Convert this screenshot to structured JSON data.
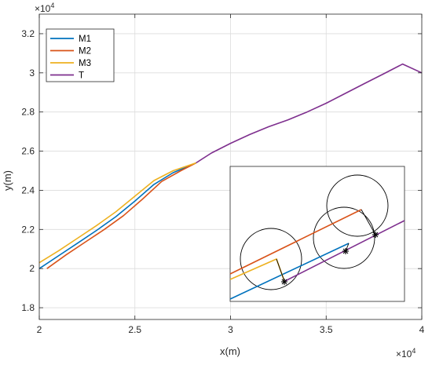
{
  "chart_data": {
    "type": "line",
    "xlabel": "x(m)",
    "ylabel": "y(m)",
    "x_exponent_label": "×10",
    "x_exponent_power": "4",
    "y_exponent_label": "×10",
    "y_exponent_power": "4",
    "xlim": [
      20000,
      40000
    ],
    "ylim": [
      17400,
      33000
    ],
    "x_ticks": [
      20000,
      25000,
      30000,
      35000,
      40000
    ],
    "x_tick_labels": [
      "2",
      "2.5",
      "3",
      "3.5",
      "4"
    ],
    "y_ticks": [
      18000,
      20000,
      22000,
      24000,
      26000,
      28000,
      30000,
      32000
    ],
    "y_tick_labels": [
      "1.8",
      "2",
      "2.2",
      "2.4",
      "2.6",
      "2.8",
      "3",
      "3.2"
    ],
    "grid": true,
    "legend_position": "top-left",
    "series": [
      {
        "name": "M1",
        "color": "#0072BD",
        "points": [
          [
            20000,
            20000
          ],
          [
            21000,
            20650
          ],
          [
            22000,
            21300
          ],
          [
            23000,
            21950
          ],
          [
            24000,
            22650
          ],
          [
            25000,
            23450
          ],
          [
            26000,
            24300
          ],
          [
            27000,
            24900
          ],
          [
            28200,
            25400
          ]
        ]
      },
      {
        "name": "M2",
        "color": "#D95319",
        "points": [
          [
            20400,
            20000
          ],
          [
            21400,
            20700
          ],
          [
            22400,
            21350
          ],
          [
            23400,
            22000
          ],
          [
            24400,
            22700
          ],
          [
            25400,
            23550
          ],
          [
            26400,
            24450
          ],
          [
            27400,
            25000
          ],
          [
            28200,
            25400
          ]
        ]
      },
      {
        "name": "M3",
        "color": "#EDB120",
        "points": [
          [
            20000,
            20300
          ],
          [
            21000,
            20900
          ],
          [
            22000,
            21550
          ],
          [
            23000,
            22200
          ],
          [
            24000,
            22900
          ],
          [
            25000,
            23700
          ],
          [
            26000,
            24500
          ],
          [
            27000,
            25000
          ],
          [
            28200,
            25400
          ]
        ]
      },
      {
        "name": "T",
        "color": "#7E2F8E",
        "points": [
          [
            28200,
            25400
          ],
          [
            29000,
            25900
          ],
          [
            30000,
            26400
          ],
          [
            31000,
            26850
          ],
          [
            32000,
            27250
          ],
          [
            33000,
            27600
          ],
          [
            34000,
            28000
          ],
          [
            35000,
            28450
          ],
          [
            36000,
            28950
          ],
          [
            37000,
            29450
          ],
          [
            38000,
            29950
          ],
          [
            39000,
            30450
          ],
          [
            40000,
            30000
          ]
        ]
      }
    ]
  }
}
